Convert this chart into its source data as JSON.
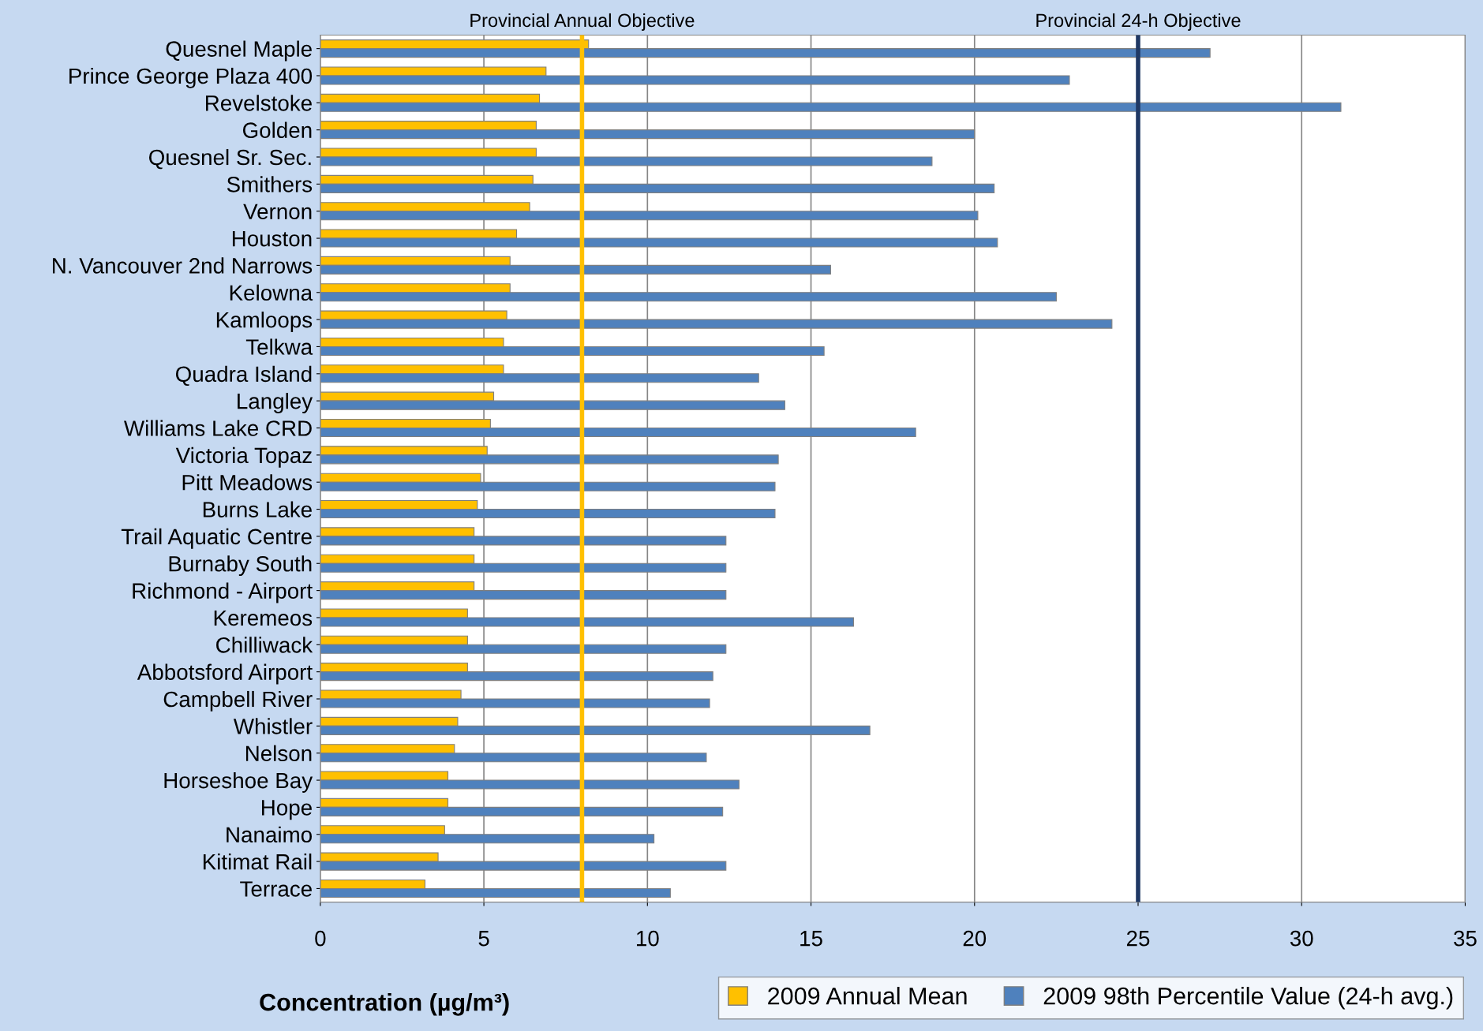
{
  "chart_data": {
    "type": "bar",
    "orientation": "horizontal",
    "xlabel": "Concentration (µg/m³)",
    "categories": [
      "Quesnel Maple",
      "Prince George Plaza 400",
      "Revelstoke",
      "Golden",
      "Quesnel Sr. Sec.",
      "Smithers",
      "Vernon",
      "Houston",
      "N. Vancouver 2nd Narrows",
      "Kelowna",
      "Kamloops",
      "Telkwa",
      "Quadra Island",
      "Langley",
      "Williams Lake CRD",
      "Victoria Topaz",
      "Pitt Meadows",
      "Burns Lake",
      "Trail Aquatic Centre",
      "Burnaby South",
      "Richmond - Airport",
      "Keremeos",
      "Chilliwack",
      "Abbotsford Airport",
      "Campbell River",
      "Whistler",
      "Nelson",
      "Horseshoe Bay",
      "Hope",
      "Nanaimo",
      "Kitimat Rail",
      "Terrace"
    ],
    "series": [
      {
        "name": "2009 Annual Mean",
        "color": "#ffc000",
        "values": [
          8.2,
          6.9,
          6.7,
          6.6,
          6.6,
          6.5,
          6.4,
          6.0,
          5.8,
          5.8,
          5.7,
          5.6,
          5.6,
          5.3,
          5.2,
          5.1,
          4.9,
          4.8,
          4.7,
          4.7,
          4.7,
          4.5,
          4.5,
          4.5,
          4.3,
          4.2,
          4.1,
          3.9,
          3.9,
          3.8,
          3.6,
          3.2
        ]
      },
      {
        "name": "2009 98th Percentile Value (24-h avg.)",
        "color": "#4f81bd",
        "values": [
          27.2,
          22.9,
          31.2,
          20.0,
          18.7,
          20.6,
          20.1,
          20.7,
          15.6,
          22.5,
          24.2,
          15.4,
          13.4,
          14.2,
          18.2,
          14.0,
          13.9,
          13.9,
          12.4,
          12.4,
          12.4,
          16.3,
          12.4,
          12.0,
          11.9,
          16.8,
          11.8,
          12.8,
          12.3,
          10.2,
          12.4,
          10.7
        ]
      }
    ],
    "xlim": [
      0,
      35
    ],
    "xticks": [
      0,
      5,
      10,
      15,
      20,
      25,
      30,
      35
    ],
    "grid": "x",
    "legend": "bottom right",
    "ref_lines": [
      {
        "axis": "x",
        "value": 8,
        "label": "Provincial Annual Objective",
        "color": "#ffc000"
      },
      {
        "axis": "x",
        "value": 25,
        "label": "Provincial 24-h Objective",
        "color": "#1f3864"
      }
    ]
  }
}
